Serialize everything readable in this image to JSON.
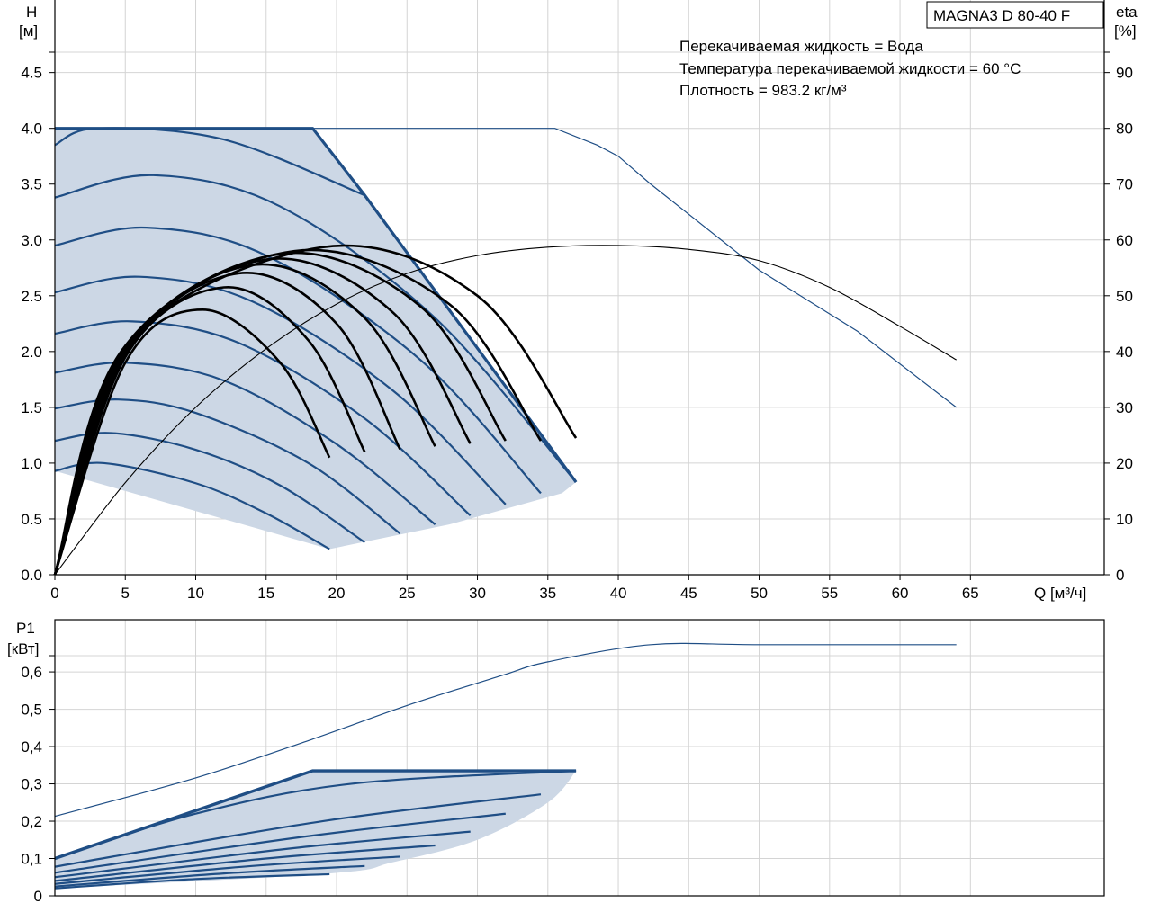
{
  "model_label": "MAGNA3 D 80-40 F",
  "notes": {
    "line1": "Перекачиваемая жидкость = Вода",
    "line2": "Температура перекачиваемой жидкости = 60 °C",
    "line3": "Плотность = 983.2 кг/м³"
  },
  "colors": {
    "band_fill": "#ccd7e5",
    "curve_blue": "#1f4e85",
    "efficiency_black": "#000000",
    "grid": "#d4d4d4",
    "axis": "#000000"
  },
  "chart_data": [
    {
      "type": "line",
      "id": "head_chart",
      "ylabel": "H",
      "yunit": "[м]",
      "y2label": "eta",
      "y2unit": "[%]",
      "xlabel": "Q [м³/ч]",
      "xlim": [
        0,
        74.5
      ],
      "ylim": [
        0,
        5.15
      ],
      "y2lim": [
        0,
        103
      ],
      "xticks": [
        0,
        5,
        10,
        15,
        20,
        25,
        30,
        35,
        40,
        45,
        50,
        55,
        60,
        65
      ],
      "yticks": [
        0.0,
        0.5,
        1.0,
        1.5,
        2.0,
        2.5,
        3.0,
        3.5,
        4.0,
        4.5
      ],
      "ytick_labels": [
        "0.0",
        "0.5",
        "1.0",
        "1.5",
        "2.0",
        "2.5",
        "3.0",
        "3.5",
        "4.0",
        "4.5"
      ],
      "y2ticks": [
        0,
        10,
        20,
        30,
        40,
        50,
        60,
        70,
        80,
        90
      ],
      "grid": true,
      "operating_range_fill": {
        "upper": [
          [
            0,
            4.0
          ],
          [
            18.3,
            4.0
          ],
          [
            22,
            3.4
          ],
          [
            37,
            0.83
          ]
        ],
        "lower": [
          [
            0,
            0.93
          ],
          [
            19.5,
            0.23
          ],
          [
            28,
            0.45
          ],
          [
            36,
            0.73
          ],
          [
            37,
            0.83
          ]
        ]
      },
      "series": [
        {
          "role": "single_pump_max",
          "x": [
            0,
            10,
            18.3,
            21.5,
            25,
            27,
            30,
            32,
            35.5,
            38.5,
            40,
            42.3,
            50,
            57,
            64
          ],
          "y": [
            4.0,
            4.0,
            4.0,
            4.0,
            4.0,
            4.0,
            4.0,
            4.0,
            4.0,
            3.85,
            3.75,
            3.5,
            2.73,
            2.18,
            1.5
          ]
        },
        {
          "role": "efficiency_single_pump",
          "axis": "y2",
          "x": [
            0,
            5,
            10,
            15,
            20,
            25,
            30,
            35,
            40,
            45,
            50,
            55,
            60,
            64
          ],
          "y": [
            0,
            16.5,
            30,
            40.5,
            48.5,
            54,
            57.2,
            58.7,
            59,
            58.3,
            56.3,
            51.5,
            44.5,
            38.5
          ]
        },
        {
          "role": "head_speed_curves",
          "curves": [
            {
              "x": [
                0,
                3.5,
                10,
                15,
                19.5
              ],
              "y": [
                0.93,
                1.0,
                0.82,
                0.55,
                0.23
              ]
            },
            {
              "x": [
                0,
                4,
                10,
                16,
                22
              ],
              "y": [
                1.2,
                1.27,
                1.12,
                0.8,
                0.29
              ]
            },
            {
              "x": [
                0,
                4.5,
                10,
                18,
                24.5
              ],
              "y": [
                1.49,
                1.57,
                1.45,
                1.0,
                0.37
              ]
            },
            {
              "x": [
                0,
                5,
                12,
                20,
                27
              ],
              "y": [
                1.81,
                1.9,
                1.74,
                1.17,
                0.45
              ]
            },
            {
              "x": [
                0,
                5.5,
                13,
                22,
                29.5
              ],
              "y": [
                2.16,
                2.27,
                2.08,
                1.4,
                0.53
              ]
            },
            {
              "x": [
                0,
                6,
                14,
                24,
                32
              ],
              "y": [
                2.53,
                2.67,
                2.45,
                1.65,
                0.63
              ]
            },
            {
              "x": [
                0,
                6.5,
                15,
                26,
                34.5
              ],
              "y": [
                2.95,
                3.11,
                2.86,
                1.92,
                0.73
              ]
            },
            {
              "x": [
                0,
                7,
                16,
                27,
                37
              ],
              "y": [
                3.38,
                3.58,
                3.3,
                2.3,
                0.83
              ]
            },
            {
              "x": [
                0,
                3,
                12,
                22
              ],
              "y": [
                3.85,
                4.0,
                3.9,
                3.4
              ]
            },
            {
              "x": [
                2.5,
                12.5
              ],
              "y": [
                4.0,
                4.0
              ]
            }
          ]
        },
        {
          "role": "efficiency_speed_curves",
          "axis": "y2",
          "curves": [
            {
              "x": [
                0,
                5,
                10.5,
                16,
                19.5
              ],
              "y": [
                0,
                38,
                47.5,
                38,
                21
              ]
            },
            {
              "x": [
                0,
                5,
                12,
                18,
                22
              ],
              "y": [
                0,
                39,
                51.5,
                42,
                22
              ]
            },
            {
              "x": [
                0,
                5,
                13,
                20,
                24.5
              ],
              "y": [
                0,
                39.5,
                54,
                45,
                22.5
              ]
            },
            {
              "x": [
                0,
                5,
                14,
                22,
                27
              ],
              "y": [
                0,
                40,
                55.5,
                46,
                23
              ]
            },
            {
              "x": [
                0,
                5,
                15,
                24,
                29.5
              ],
              "y": [
                0,
                40,
                56.5,
                47,
                23.5
              ]
            },
            {
              "x": [
                0,
                5,
                16,
                26,
                32
              ],
              "y": [
                0,
                40.5,
                57.5,
                48,
                24
              ]
            },
            {
              "x": [
                0,
                5,
                17,
                28,
                34.5
              ],
              "y": [
                0,
                41,
                58,
                48.5,
                24
              ]
            },
            {
              "x": [
                0,
                5,
                19,
                30,
                37
              ],
              "y": [
                0,
                41,
                58.7,
                50,
                24.5
              ]
            }
          ]
        }
      ]
    },
    {
      "type": "line",
      "id": "power_chart",
      "ylabel": "P1",
      "yunit": "[кВт]",
      "xlim": [
        0,
        74.5
      ],
      "ylim": [
        0,
        0.74
      ],
      "yticks": [
        0,
        0.1,
        0.2,
        0.3,
        0.4,
        0.5,
        0.6
      ],
      "ytick_labels": [
        "0",
        "0,1",
        "0,2",
        "0,3",
        "0,4",
        "0,5",
        "0,6"
      ],
      "xticks": [
        0,
        5,
        10,
        15,
        20,
        25,
        30,
        35,
        40,
        45,
        50,
        55,
        60,
        65
      ],
      "grid": true,
      "operating_range_fill": {
        "upper": [
          [
            0,
            0.1
          ],
          [
            18.3,
            0.335
          ],
          [
            37,
            0.335
          ]
        ],
        "lower": [
          [
            0,
            0.02
          ],
          [
            19.5,
            0.06
          ],
          [
            24,
            0.09
          ],
          [
            30,
            0.15
          ],
          [
            35,
            0.25
          ],
          [
            37,
            0.335
          ]
        ]
      },
      "series": [
        {
          "role": "single_pump_max_power",
          "x": [
            0,
            10,
            18.3,
            25,
            31.7,
            35,
            42.3,
            50,
            64
          ],
          "y": [
            0.213,
            0.316,
            0.42,
            0.51,
            0.59,
            0.627,
            0.673,
            0.673,
            0.673
          ]
        },
        {
          "role": "power_speed_curves",
          "curves": [
            {
              "x": [
                0,
                10,
                19.5
              ],
              "y": [
                0.02,
                0.045,
                0.058
              ]
            },
            {
              "x": [
                0,
                12,
                22
              ],
              "y": [
                0.025,
                0.06,
                0.08
              ]
            },
            {
              "x": [
                0,
                14,
                24.5
              ],
              "y": [
                0.032,
                0.08,
                0.105
              ]
            },
            {
              "x": [
                0,
                15,
                27
              ],
              "y": [
                0.04,
                0.1,
                0.135
              ]
            },
            {
              "x": [
                0,
                17,
                29.5
              ],
              "y": [
                0.05,
                0.128,
                0.172
              ]
            },
            {
              "x": [
                0,
                18,
                32
              ],
              "y": [
                0.062,
                0.16,
                0.22
              ]
            },
            {
              "x": [
                0,
                19,
                34.5
              ],
              "y": [
                0.078,
                0.2,
                0.272
              ]
            },
            {
              "x": [
                0,
                10,
                21,
                37
              ],
              "y": [
                0.1,
                0.22,
                0.3,
                0.335
              ]
            },
            {
              "x": [
                0,
                18.3,
                37
              ],
              "y": [
                0.1,
                0.335,
                0.335
              ]
            }
          ]
        }
      ]
    }
  ]
}
